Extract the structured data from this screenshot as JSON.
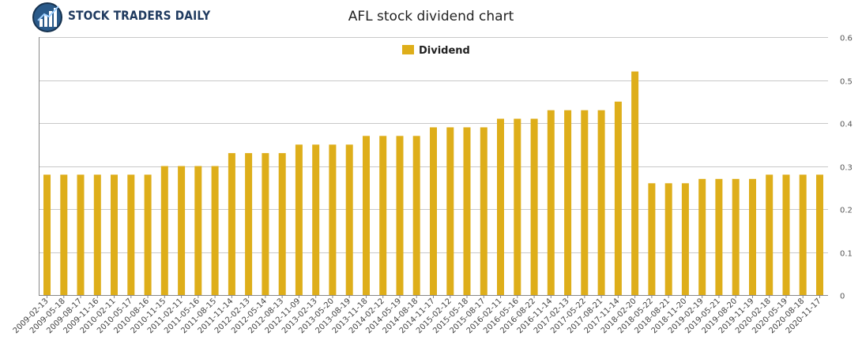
{
  "brand": {
    "name": "STOCK TRADERS DAILY"
  },
  "chart_data": {
    "type": "bar",
    "title": "AFL stock dividend chart",
    "legend": {
      "position": "top-center",
      "entries": [
        "Dividend"
      ]
    },
    "series": [
      {
        "name": "Dividend",
        "color": "#deae1a"
      }
    ],
    "grid": true,
    "ylim": [
      0,
      0.6
    ],
    "yticks": [
      "0",
      "0.1",
      "0.2",
      "0.3",
      "0.4",
      "0.5",
      "0.6"
    ],
    "categories": [
      "2009-02-13",
      "2009-05-18",
      "2009-08-17",
      "2009-11-16",
      "2010-02-11",
      "2010-05-17",
      "2010-08-16",
      "2010-11-15",
      "2011-02-11",
      "2011-05-16",
      "2011-08-15",
      "2011-11-14",
      "2012-02-13",
      "2012-05-14",
      "2012-08-13",
      "2012-11-09",
      "2013-02-13",
      "2013-05-20",
      "2013-08-19",
      "2013-11-18",
      "2014-02-12",
      "2014-05-19",
      "2014-08-18",
      "2014-11-17",
      "2015-02-12",
      "2015-05-18",
      "2015-08-17",
      "2016-02-11",
      "2016-05-16",
      "2016-08-22",
      "2016-11-14",
      "2017-02-13",
      "2017-05-22",
      "2017-08-21",
      "2017-11-14",
      "2018-02-20",
      "2018-05-22",
      "2018-08-21",
      "2018-11-20",
      "2019-02-19",
      "2019-05-21",
      "2019-08-20",
      "2019-11-19",
      "2020-02-18",
      "2020-05-19",
      "2020-08-18",
      "2020-11-17"
    ],
    "values": [
      0.28,
      0.28,
      0.28,
      0.28,
      0.28,
      0.28,
      0.28,
      0.3,
      0.3,
      0.3,
      0.3,
      0.33,
      0.33,
      0.33,
      0.33,
      0.35,
      0.35,
      0.35,
      0.35,
      0.37,
      0.37,
      0.37,
      0.37,
      0.39,
      0.39,
      0.39,
      0.39,
      0.41,
      0.41,
      0.41,
      0.43,
      0.43,
      0.43,
      0.43,
      0.45,
      0.52,
      0.26,
      0.26,
      0.26,
      0.27,
      0.27,
      0.27,
      0.27,
      0.28,
      0.28,
      0.28,
      0.28
    ]
  }
}
